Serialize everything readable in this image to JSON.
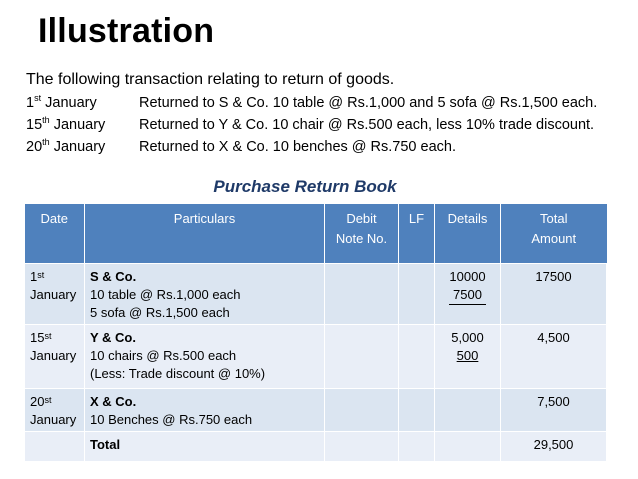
{
  "title": "Illustration",
  "intro": "The following transaction relating to return of goods.",
  "transactions": [
    {
      "day": "1",
      "suffix": "st",
      "month": "January",
      "text": "Returned to S & Co. 10 table @ Rs.1,000 and 5 sofa @ Rs.1,500 each."
    },
    {
      "day": "15",
      "suffix": "th",
      "month": "January",
      "text": "Returned to Y & Co. 10 chair @ Rs.500 each, less 10% trade discount."
    },
    {
      "day": "20",
      "suffix": "th",
      "month": "January",
      "text": "Returned to X & Co. 10 benches @ Rs.750 each."
    }
  ],
  "book_title": "Purchase Return Book",
  "table": {
    "headers": {
      "date": "Date",
      "particulars": "Particulars",
      "debit_note_1": "Debit",
      "debit_note_2": "Note No.",
      "lf": "LF",
      "details": "Details",
      "total_1": "Total",
      "total_2": "Amount"
    },
    "rows": [
      {
        "day": "1",
        "suffix": "st",
        "month": "January",
        "party": "S & Co.",
        "line1": "10 table @ Rs.1,000 each",
        "line2": "5 sofa @ Rs.1,500 each",
        "detail1": "10000",
        "detail2": "7500",
        "total": "17500"
      },
      {
        "day": "15",
        "suffix": "st",
        "month": "January",
        "party": "Y & Co.",
        "line1": "10 chairs @ Rs.500 each",
        "line2": "(Less: Trade discount @ 10%)",
        "detail1": "5,000",
        "detail2": "500",
        "total": "4,500"
      },
      {
        "day": "20",
        "suffix": "st",
        "month": "January",
        "party": "X & Co.",
        "line1": "10 Benches @ Rs.750 each",
        "total": "7,500"
      }
    ],
    "total_label": "Total",
    "grand_total": "29,500"
  }
}
